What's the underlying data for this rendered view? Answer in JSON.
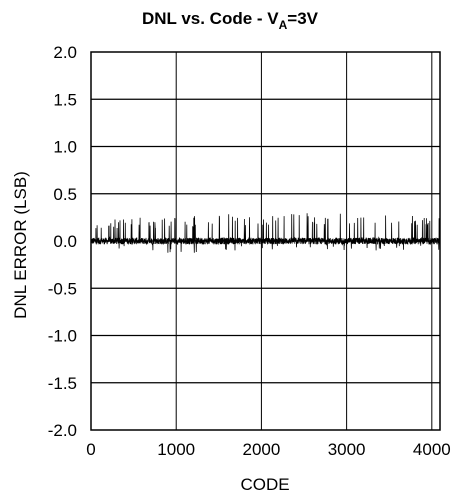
{
  "chart_data": {
    "type": "line",
    "title": {
      "prefix": "DNL vs. Code - V",
      "subscript": "A",
      "suffix": "=3V"
    },
    "xlabel": "CODE",
    "ylabel": "DNL ERROR (LSB)",
    "xlim": [
      0,
      4096
    ],
    "ylim": [
      -2.0,
      2.0
    ],
    "x_ticks": [
      0,
      1000,
      2000,
      3000,
      4000
    ],
    "x_tick_labels": [
      "0",
      "1000",
      "2000",
      "3000",
      "4000"
    ],
    "y_ticks": [
      2.0,
      1.5,
      1.0,
      0.5,
      0.0,
      -0.5,
      -1.0,
      -1.5,
      -2.0
    ],
    "y_tick_labels": [
      "2.0",
      "1.5",
      "1.0",
      "0.5",
      "0.0",
      "-0.5",
      "-1.0",
      "-1.5",
      "-2.0"
    ],
    "grid": true,
    "colors": {
      "series": "#000000",
      "grid": "#000000"
    },
    "series": [
      {
        "approximate_envelope": {
          "x": [
            0,
            500,
            1000,
            1500,
            2000,
            2500,
            3000,
            3500,
            4095
          ],
          "y_max": [
            0.2,
            0.25,
            0.25,
            0.3,
            0.3,
            0.3,
            0.3,
            0.28,
            0.28
          ],
          "y_min": [
            -0.05,
            -0.1,
            -0.15,
            -0.1,
            -0.1,
            -0.1,
            -0.1,
            -0.1,
            -0.1
          ]
        }
      }
    ]
  }
}
